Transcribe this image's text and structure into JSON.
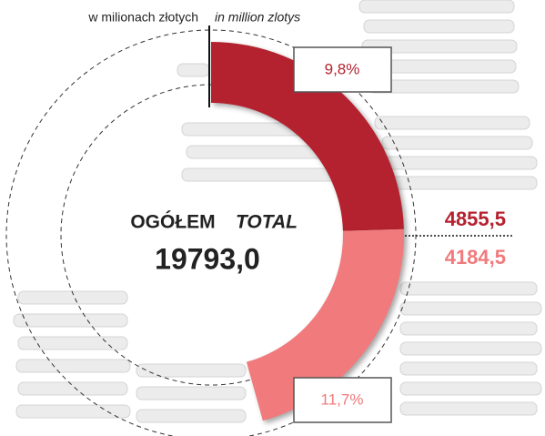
{
  "chart_data": {
    "type": "donut",
    "header": "w milionach złotych",
    "header_en": "in million zlotys",
    "center_label": "OGÓŁEM",
    "center_label_en": "TOTAL",
    "total": 19793.0,
    "total_label": "19793,0",
    "series": [
      {
        "color": "#b5222f",
        "values": [
          4855.5
        ],
        "value_labels": [
          "4855,5"
        ],
        "annotation": {
          "value": 9.8,
          "label": "9,8%"
        }
      },
      {
        "color": "#f07a7c",
        "values": [
          4184.5
        ],
        "value_labels": [
          "4184,5"
        ],
        "annotation": {
          "value": 11.7,
          "label": "11,7%"
        }
      }
    ]
  }
}
